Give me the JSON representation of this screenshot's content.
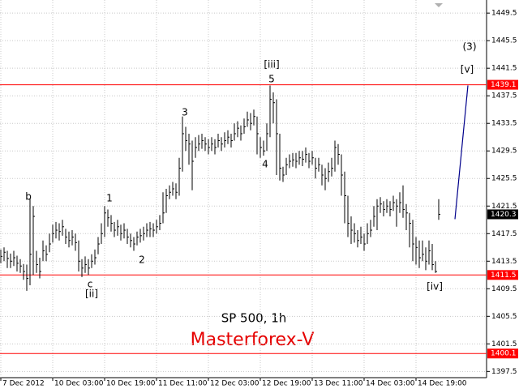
{
  "chart_data": {
    "type": "hlc",
    "title": "SP 500, 1h",
    "subtitle": "Masterforex-V",
    "color": "#000000",
    "xlim": [
      -0.25,
      149.75
    ],
    "ylim": [
      1396.6,
      1451.4
    ],
    "yticks": [
      1449.5,
      1445.5,
      1441.5,
      1437.5,
      1433.5,
      1429.5,
      1425.5,
      1421.5,
      1417.5,
      1413.5,
      1409.5,
      1405.5,
      1401.5,
      1397.5
    ],
    "xticks": [
      {
        "value": 0,
        "label": "7 Dec 2012"
      },
      {
        "value": 16,
        "label": "10 Dec 03:00"
      },
      {
        "value": 32,
        "label": "10 Dec 19:00"
      },
      {
        "value": 48,
        "label": "11 Dec 11:00"
      },
      {
        "value": 64,
        "label": "12 Dec 03:00"
      },
      {
        "value": 80,
        "label": "12 Dec 19:00"
      },
      {
        "value": 96,
        "label": "13 Dec 11:00"
      },
      {
        "value": 112,
        "label": "14 Dec 03:00"
      },
      {
        "value": 128,
        "label": "14 Dec 19:00"
      }
    ],
    "grid": true,
    "high": [
      1415.2,
      1415.5,
      1415.0,
      1414.6,
      1415.0,
      1414.3,
      1413.8,
      1413.1,
      1413.0,
      1422.6,
      1421.5,
      1415.0,
      1414.0,
      1416.5,
      1415.8,
      1417.5,
      1418.8,
      1419.2,
      1419.0,
      1419.5,
      1418.2,
      1417.8,
      1418.0,
      1417.5,
      1416.5,
      1413.8,
      1414.2,
      1413.8,
      1414.5,
      1415.2,
      1417.0,
      1419.0,
      1421.5,
      1421.0,
      1420.2,
      1419.2,
      1419.5,
      1418.8,
      1419.0,
      1418.2,
      1417.5,
      1417.0,
      1417.8,
      1418.2,
      1418.5,
      1419.0,
      1419.2,
      1419.0,
      1419.5,
      1420.2,
      1423.5,
      1424.0,
      1424.5,
      1425.0,
      1424.8,
      1428.5,
      1434.5,
      1433.0,
      1432.0,
      1431.0,
      1431.5,
      1431.8,
      1432.0,
      1431.5,
      1431.2,
      1431.5,
      1431.2,
      1432.0,
      1431.5,
      1432.2,
      1432.5,
      1432.0,
      1433.5,
      1433.8,
      1433.2,
      1434.2,
      1435.2,
      1435.0,
      1435.5,
      1434.5,
      1431.5,
      1431.0,
      1433.5,
      1439.0,
      1438.0,
      1437.0,
      1432.0,
      1427.2,
      1428.5,
      1429.0,
      1429.2,
      1429.2,
      1429.5,
      1429.5,
      1430.0,
      1429.2,
      1429.5,
      1428.5,
      1428.5,
      1427.5,
      1427.0,
      1427.8,
      1428.5,
      1431.0,
      1430.5,
      1429.0,
      1426.5,
      1423.0,
      1420.0,
      1419.0,
      1418.0,
      1418.5,
      1417.5,
      1419.0,
      1419.5,
      1421.5,
      1422.5,
      1422.8,
      1422.2,
      1422.5,
      1422.2,
      1423.0,
      1422.5,
      1423.5,
      1424.5,
      1421.8,
      1420.5,
      1419.5,
      1417.0,
      1416.5,
      1416.5,
      1415.5,
      1416.5,
      1416.0,
      1413.5,
      1422.5
    ],
    "low": [
      1413.2,
      1413.5,
      1412.5,
      1412.5,
      1412.8,
      1412.0,
      1411.8,
      1410.8,
      1409.2,
      1410.0,
      1411.5,
      1411.8,
      1411.0,
      1413.5,
      1413.5,
      1414.8,
      1416.2,
      1416.8,
      1416.5,
      1417.2,
      1416.0,
      1415.5,
      1415.8,
      1415.0,
      1412.0,
      1411.2,
      1411.8,
      1411.5,
      1412.5,
      1413.0,
      1414.5,
      1416.0,
      1417.0,
      1418.5,
      1417.8,
      1417.0,
      1417.2,
      1416.5,
      1416.8,
      1416.0,
      1415.5,
      1415.0,
      1415.8,
      1416.2,
      1416.5,
      1417.0,
      1417.0,
      1417.0,
      1417.5,
      1418.0,
      1419.0,
      1420.5,
      1422.5,
      1423.0,
      1422.5,
      1423.0,
      1426.5,
      1429.5,
      1427.5,
      1423.8,
      1428.5,
      1429.5,
      1429.8,
      1429.5,
      1429.0,
      1429.5,
      1429.0,
      1430.0,
      1429.5,
      1430.0,
      1430.5,
      1430.0,
      1431.0,
      1431.5,
      1431.0,
      1432.0,
      1433.0,
      1432.5,
      1433.2,
      1429.0,
      1428.5,
      1428.8,
      1429.5,
      1431.5,
      1433.5,
      1426.0,
      1425.2,
      1425.0,
      1426.0,
      1427.0,
      1427.2,
      1427.0,
      1427.5,
      1427.3,
      1427.8,
      1427.0,
      1427.5,
      1425.5,
      1426.5,
      1424.5,
      1423.8,
      1425.0,
      1425.8,
      1426.5,
      1427.5,
      1423.0,
      1419.0,
      1417.0,
      1416.0,
      1416.2,
      1415.5,
      1416.0,
      1415.0,
      1416.0,
      1417.0,
      1418.5,
      1418.0,
      1420.5,
      1420.0,
      1420.5,
      1420.0,
      1420.8,
      1418.5,
      1420.5,
      1419.8,
      1418.0,
      1415.5,
      1413.5,
      1413.0,
      1412.5,
      1413.5,
      1412.2,
      1413.0,
      1412.2,
      1411.8,
      1419.5
    ],
    "close": [
      1414.2,
      1414.8,
      1413.9,
      1413.5,
      1414.0,
      1413.2,
      1412.8,
      1412.0,
      1411.0,
      1414.5,
      1420.0,
      1413.0,
      1412.0,
      1415.0,
      1414.5,
      1416.0,
      1417.5,
      1418.0,
      1417.8,
      1418.5,
      1417.0,
      1416.5,
      1417.0,
      1416.2,
      1413.5,
      1412.5,
      1413.0,
      1412.5,
      1413.5,
      1414.0,
      1416.0,
      1417.5,
      1420.5,
      1419.8,
      1419.0,
      1418.0,
      1418.5,
      1417.5,
      1418.0,
      1417.0,
      1416.5,
      1416.0,
      1417.0,
      1417.2,
      1417.5,
      1418.0,
      1418.2,
      1418.0,
      1418.5,
      1419.0,
      1420.5,
      1423.0,
      1423.5,
      1424.0,
      1423.5,
      1427.0,
      1432.0,
      1431.0,
      1430.5,
      1428.0,
      1430.0,
      1430.5,
      1431.0,
      1430.5,
      1430.0,
      1430.5,
      1430.0,
      1431.0,
      1430.5,
      1431.0,
      1431.5,
      1431.0,
      1432.0,
      1432.8,
      1432.0,
      1433.0,
      1434.0,
      1433.5,
      1434.5,
      1432.0,
      1430.0,
      1429.5,
      1432.0,
      1437.0,
      1436.5,
      1432.0,
      1427.0,
      1426.0,
      1427.5,
      1428.0,
      1428.2,
      1428.0,
      1428.5,
      1428.3,
      1429.0,
      1428.0,
      1428.5,
      1427.0,
      1427.5,
      1426.0,
      1425.5,
      1426.5,
      1427.0,
      1430.0,
      1429.0,
      1426.0,
      1423.0,
      1419.0,
      1418.0,
      1417.5,
      1416.5,
      1417.0,
      1416.0,
      1417.5,
      1418.0,
      1420.0,
      1421.5,
      1421.8,
      1421.0,
      1421.5,
      1421.0,
      1422.0,
      1421.5,
      1422.0,
      1421.0,
      1420.5,
      1419.0,
      1416.0,
      1415.5,
      1414.0,
      1414.5,
      1413.5,
      1415.0,
      1413.0,
      1412.0,
      1420.3
    ],
    "levels": [
      1439.1,
      1411.5,
      1400.1
    ],
    "level_color": "#ff0000",
    "current_price": 1420.3,
    "projection": {
      "x": [
        140,
        144
      ],
      "values": [
        1419.6,
        1439.0
      ],
      "color": "#00008b"
    },
    "annotations": [
      "b",
      "1",
      "c",
      "[ii]",
      "2",
      "3",
      "[iii]",
      "5",
      "4",
      "[iv]",
      "(3)",
      "[v]"
    ]
  }
}
